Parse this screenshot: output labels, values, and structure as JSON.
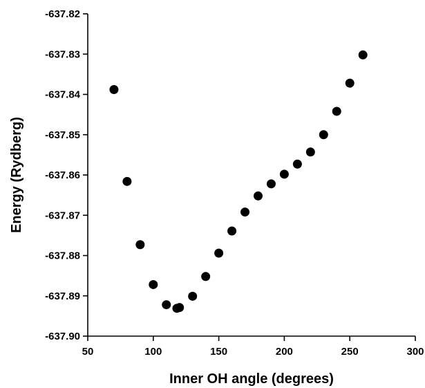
{
  "chart_data": {
    "type": "scatter",
    "xlabel": "Inner OH angle (degrees)",
    "ylabel": "Energy (Rydberg)",
    "xlim": [
      50,
      300
    ],
    "ylim": [
      -637.9,
      -637.82
    ],
    "x_ticks": [
      50,
      100,
      150,
      200,
      250,
      300
    ],
    "x_tick_labels": [
      "50",
      "100",
      "150",
      "200",
      "250",
      "300"
    ],
    "y_ticks": [
      -637.82,
      -637.83,
      -637.84,
      -637.85,
      -637.86,
      -637.87,
      -637.88,
      -637.89,
      -637.9
    ],
    "y_tick_labels": [
      "-637.82",
      "-637.83",
      "-637.84",
      "-637.85",
      "-637.86",
      "-637.87",
      "-637.88",
      "-637.89",
      "-637.90"
    ],
    "grid": false,
    "marker_color": "#000000",
    "series": [
      {
        "x": [
          70,
          80,
          90,
          100,
          110,
          118,
          120,
          130,
          140,
          150,
          160,
          170,
          180,
          190,
          200,
          210,
          220,
          230,
          240,
          250,
          260
        ],
        "y": [
          -637.8388,
          -637.8616,
          -637.8773,
          -637.8872,
          -637.8922,
          -637.8931,
          -637.8929,
          -637.8901,
          -637.8852,
          -637.8794,
          -637.8739,
          -637.8692,
          -637.8652,
          -637.8622,
          -637.8598,
          -637.8573,
          -637.8543,
          -637.85,
          -637.8442,
          -637.8372,
          -637.8302
        ]
      }
    ]
  }
}
